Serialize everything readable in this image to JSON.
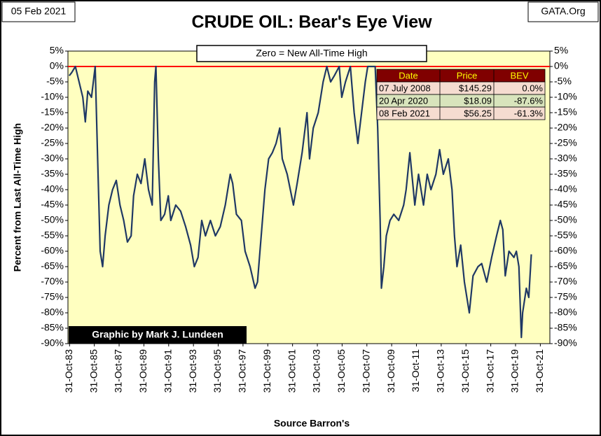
{
  "chart_data": {
    "type": "line",
    "title": "CRUDE OIL:  Bear's Eye View",
    "date": "05 Feb 2021",
    "source_site": "GATA.Org",
    "annotation": "Zero = New All-Time High",
    "credit": "Graphic by Mark J. Lundeen",
    "ylabel": "Percent  from Last  All-Time  High",
    "xlabel": "Source Barron's",
    "reference_line": {
      "value": 0,
      "color": "#ff0000"
    },
    "background": "#ffffc0",
    "xlim": [
      1983.7,
      2022.6
    ],
    "xticks": [
      {
        "value": 1983.83,
        "label": "31-Oct-83"
      },
      {
        "value": 1985.83,
        "label": "31-Oct-85"
      },
      {
        "value": 1987.83,
        "label": "31-Oct-87"
      },
      {
        "value": 1989.83,
        "label": "31-Oct-89"
      },
      {
        "value": 1991.83,
        "label": "31-Oct-91"
      },
      {
        "value": 1993.83,
        "label": "31-Oct-93"
      },
      {
        "value": 1995.83,
        "label": "31-Oct-95"
      },
      {
        "value": 1997.83,
        "label": "31-Oct-97"
      },
      {
        "value": 1999.83,
        "label": "31-Oct-99"
      },
      {
        "value": 2001.83,
        "label": "31-Oct-01"
      },
      {
        "value": 2003.83,
        "label": "31-Oct-03"
      },
      {
        "value": 2005.83,
        "label": "31-Oct-05"
      },
      {
        "value": 2007.83,
        "label": "31-Oct-07"
      },
      {
        "value": 2009.83,
        "label": "31-Oct-09"
      },
      {
        "value": 2011.83,
        "label": "31-Oct-11"
      },
      {
        "value": 2013.83,
        "label": "31-Oct-13"
      },
      {
        "value": 2015.83,
        "label": "31-Oct-15"
      },
      {
        "value": 2017.83,
        "label": "31-Oct-17"
      },
      {
        "value": 2019.83,
        "label": "31-Oct-19"
      },
      {
        "value": 2021.83,
        "label": "31-Oct-21"
      }
    ],
    "ylim": [
      -90,
      5
    ],
    "yticks": [
      {
        "value": 5,
        "label": "5%"
      },
      {
        "value": 0,
        "label": "0%"
      },
      {
        "value": -5,
        "label": "-5%"
      },
      {
        "value": -10,
        "label": "-10%"
      },
      {
        "value": -15,
        "label": "-15%"
      },
      {
        "value": -20,
        "label": "-20%"
      },
      {
        "value": -25,
        "label": "-25%"
      },
      {
        "value": -30,
        "label": "-30%"
      },
      {
        "value": -35,
        "label": "-35%"
      },
      {
        "value": -40,
        "label": "-40%"
      },
      {
        "value": -45,
        "label": "-45%"
      },
      {
        "value": -50,
        "label": "-50%"
      },
      {
        "value": -55,
        "label": "-55%"
      },
      {
        "value": -60,
        "label": "-60%"
      },
      {
        "value": -65,
        "label": "-65%"
      },
      {
        "value": -70,
        "label": "-70%"
      },
      {
        "value": -75,
        "label": "-75%"
      },
      {
        "value": -80,
        "label": "-80%"
      },
      {
        "value": -85,
        "label": "-85%"
      },
      {
        "value": -90,
        "label": "-90%"
      }
    ],
    "x": [
      1983.8,
      1984.0,
      1984.3,
      1984.6,
      1984.9,
      1985.1,
      1985.3,
      1985.6,
      1985.9,
      1986.1,
      1986.3,
      1986.5,
      1986.7,
      1987.0,
      1987.3,
      1987.6,
      1987.9,
      1988.2,
      1988.5,
      1988.8,
      1989.0,
      1989.3,
      1989.6,
      1989.9,
      1990.2,
      1990.5,
      1990.7,
      1990.8,
      1991.0,
      1991.2,
      1991.5,
      1991.8,
      1992.0,
      1992.4,
      1992.8,
      1993.2,
      1993.6,
      1993.9,
      1994.2,
      1994.5,
      1994.8,
      1995.2,
      1995.6,
      1996.0,
      1996.4,
      1996.8,
      1997.0,
      1997.3,
      1997.7,
      1998.0,
      1998.4,
      1998.8,
      1999.0,
      1999.3,
      1999.6,
      1999.9,
      2000.2,
      2000.5,
      2000.8,
      2001.0,
      2001.4,
      2001.9,
      2002.2,
      2002.6,
      2003.0,
      2003.2,
      2003.5,
      2003.9,
      2004.3,
      2004.6,
      2004.9,
      2005.2,
      2005.6,
      2005.8,
      2006.1,
      2006.5,
      2006.8,
      2007.1,
      2007.4,
      2007.7,
      2007.9,
      2008.3,
      2008.5,
      2008.7,
      2008.9,
      2009.0,
      2009.2,
      2009.4,
      2009.7,
      2010.0,
      2010.4,
      2010.8,
      2011.0,
      2011.3,
      2011.7,
      2012.0,
      2012.4,
      2012.7,
      2013.0,
      2013.4,
      2013.7,
      2014.0,
      2014.4,
      2014.7,
      2014.9,
      2015.1,
      2015.4,
      2015.7,
      2015.9,
      2016.1,
      2016.4,
      2016.8,
      2017.1,
      2017.5,
      2017.9,
      2018.3,
      2018.6,
      2018.8,
      2019.0,
      2019.3,
      2019.7,
      2019.9,
      2020.1,
      2020.3,
      2020.4,
      2020.7,
      2020.9,
      2021.1
    ],
    "series": [
      {
        "color": "#1f3864",
        "values": [
          -3,
          -2,
          0,
          -5,
          -10,
          -18,
          -8,
          -10,
          0,
          -30,
          -60,
          -65,
          -55,
          -45,
          -40,
          -37,
          -45,
          -50,
          -57,
          -55,
          -42,
          -35,
          -38,
          -30,
          -40,
          -45,
          -5,
          0,
          -30,
          -50,
          -48,
          -42,
          -50,
          -45,
          -47,
          -52,
          -58,
          -65,
          -62,
          -50,
          -55,
          -50,
          -55,
          -52,
          -45,
          -35,
          -38,
          -48,
          -50,
          -60,
          -65,
          -72,
          -70,
          -55,
          -40,
          -30,
          -28,
          -25,
          -20,
          -30,
          -35,
          -45,
          -38,
          -28,
          -15,
          -30,
          -20,
          -15,
          -5,
          0,
          -5,
          -3,
          0,
          -10,
          -5,
          0,
          -15,
          -25,
          -15,
          -5,
          0,
          0,
          0,
          -20,
          -50,
          -72,
          -65,
          -55,
          -50,
          -48,
          -50,
          -45,
          -40,
          -28,
          -45,
          -35,
          -45,
          -35,
          -40,
          -35,
          -27,
          -35,
          -30,
          -40,
          -55,
          -65,
          -58,
          -70,
          -75,
          -80,
          -68,
          -65,
          -64,
          -70,
          -62,
          -55,
          -50,
          -53,
          -68,
          -60,
          -62,
          -60,
          -65,
          -88,
          -80,
          -72,
          -75,
          -61
        ]
      }
    ]
  },
  "table": {
    "headers": [
      "Date",
      "Price",
      "BEV"
    ],
    "rows": [
      [
        "07 July 2008",
        "$145.29",
        "0.0%"
      ],
      [
        "20 Apr 2020",
        "$18.09",
        "-87.6%"
      ],
      [
        "08 Feb 2021",
        "$56.25",
        "-61.3%"
      ]
    ]
  }
}
